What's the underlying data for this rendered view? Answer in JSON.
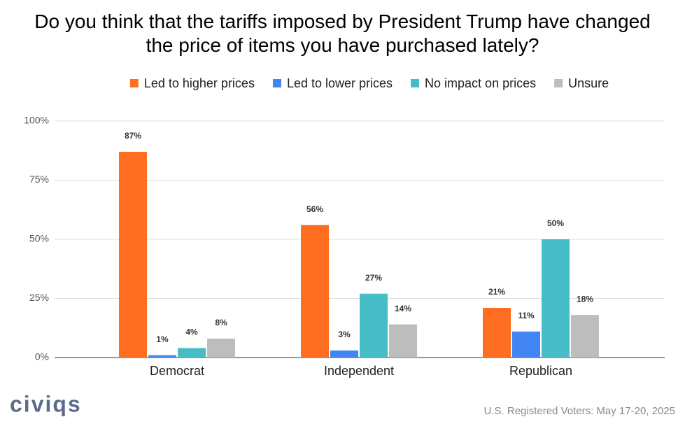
{
  "chart_data": {
    "type": "bar",
    "title": "Do you think that the tariffs imposed by President Trump have changed the price of items you have purchased lately?",
    "categories": [
      "Democrat",
      "Independent",
      "Republican"
    ],
    "series": [
      {
        "name": "Led to higher prices",
        "color": "#ff6d20",
        "values": [
          87,
          56,
          21
        ],
        "value_labels": [
          "87%",
          "56%",
          "21%"
        ]
      },
      {
        "name": "Led to lower prices",
        "color": "#4285f4",
        "values": [
          1,
          3,
          11
        ],
        "value_labels": [
          "1%",
          "3%",
          "11%"
        ]
      },
      {
        "name": "No impact on prices",
        "color": "#46bdc6",
        "values": [
          4,
          27,
          50
        ],
        "value_labels": [
          "4%",
          "27%",
          "50%"
        ]
      },
      {
        "name": "Unsure",
        "color": "#bdbdbd",
        "values": [
          8,
          14,
          18
        ],
        "value_labels": [
          "8%",
          "14%",
          "18%"
        ]
      }
    ],
    "ylim": [
      0,
      100
    ],
    "yticks": [
      {
        "value": 0,
        "label": "0%"
      },
      {
        "value": 25,
        "label": "25%"
      },
      {
        "value": 50,
        "label": "50%"
      },
      {
        "value": 75,
        "label": "75%"
      },
      {
        "value": 100,
        "label": "100%"
      }
    ],
    "grid": true,
    "legend": "top",
    "logo": "civiqs",
    "source": "U.S. Registered Voters: May 17-20, 2025"
  }
}
